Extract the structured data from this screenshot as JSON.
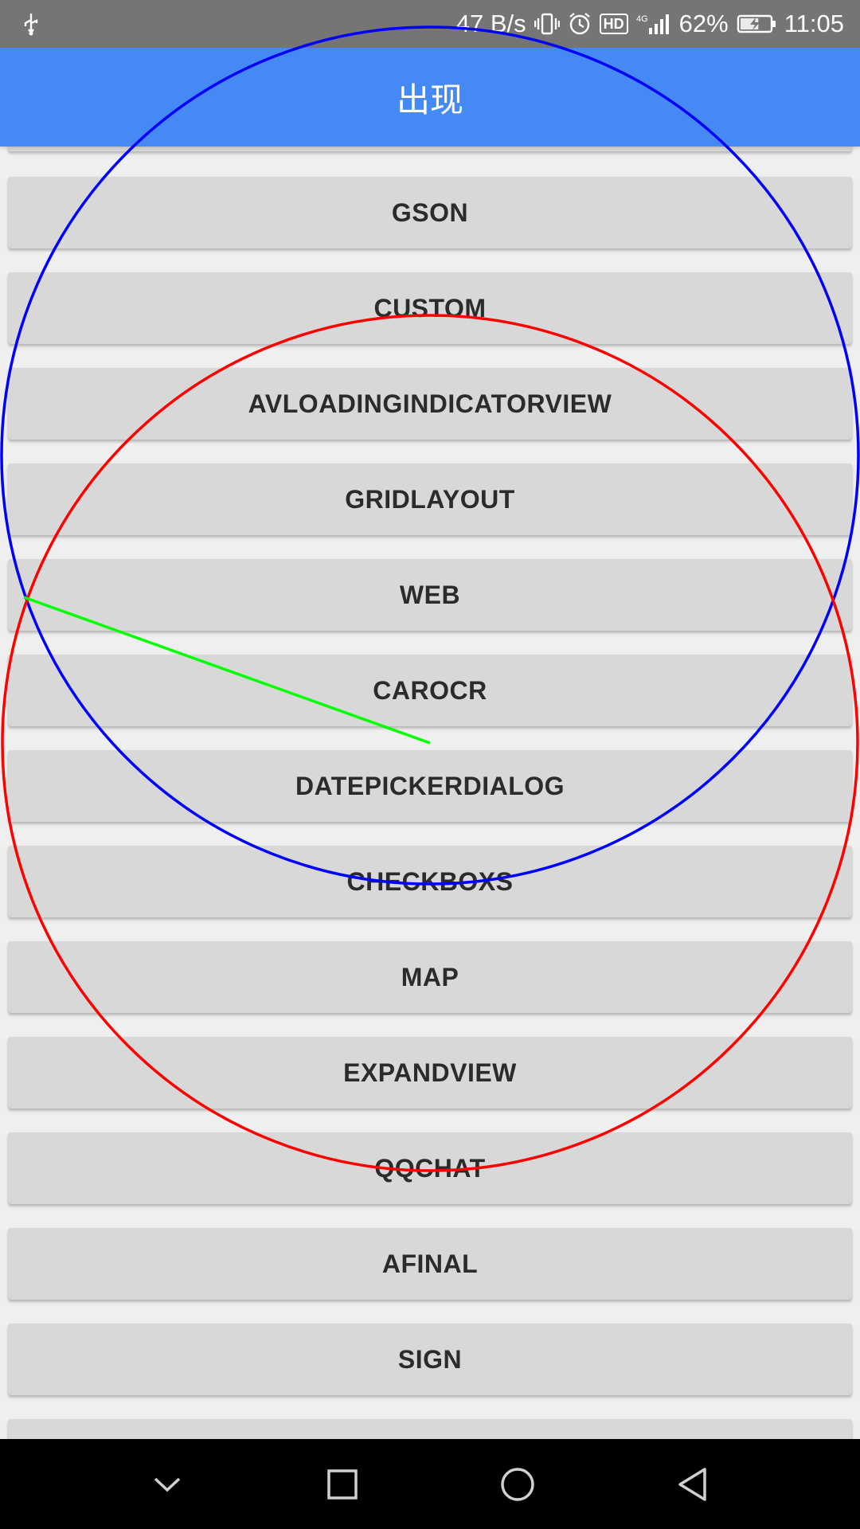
{
  "status_bar": {
    "left_icon": "usb-icon",
    "network_speed": "47 B/s",
    "icons": [
      "vibrate-icon",
      "alarm-icon",
      "hd-icon",
      "signal-4g-icon"
    ],
    "hd_label": "HD",
    "battery_percent": "62%",
    "battery_level": 0.62,
    "time": "11:05"
  },
  "app_bar": {
    "title": "出现",
    "color": "#4589f5"
  },
  "buttons": [
    {
      "label": "GSON"
    },
    {
      "label": "CUSTOM"
    },
    {
      "label": "AVLOADINGINDICATORVIEW"
    },
    {
      "label": "GRIDLAYOUT"
    },
    {
      "label": "WEB"
    },
    {
      "label": "CAROCR"
    },
    {
      "label": "DATEPICKERDIALOG"
    },
    {
      "label": "CHECKBOXS"
    },
    {
      "label": "MAP"
    },
    {
      "label": "EXPANDVIEW"
    },
    {
      "label": "QQCHAT"
    },
    {
      "label": "AFINAL"
    },
    {
      "label": "SIGN"
    }
  ],
  "overlay": {
    "blue_circle_color": "#0000ff",
    "red_circle_color": "#ff0000",
    "green_line_color": "#00ff00"
  },
  "nav_bar": {
    "icons": [
      "chevron-down-icon",
      "recents-square-icon",
      "home-circle-icon",
      "back-triangle-icon"
    ]
  }
}
